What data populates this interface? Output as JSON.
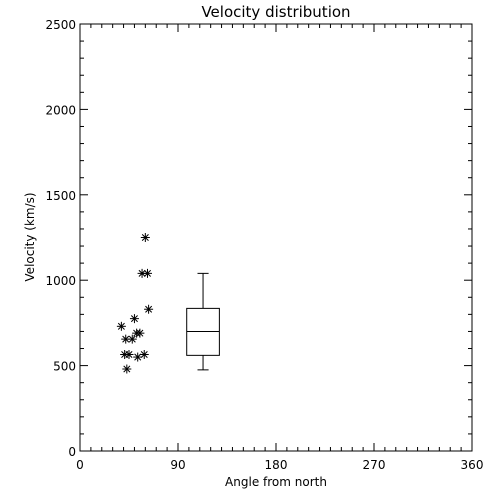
{
  "chart_data": {
    "type": "scatter",
    "title": "Velocity distribution",
    "xlabel": "Angle from north",
    "ylabel": "Velocity (km/s)",
    "xlim": [
      0,
      360
    ],
    "ylim": [
      0,
      2500
    ],
    "xticks": [
      "0",
      "90",
      "180",
      "270",
      "360"
    ],
    "yticks": [
      "0",
      "500",
      "1000",
      "1500",
      "2000",
      "2500"
    ],
    "points": [
      {
        "x": 38,
        "y": 730
      },
      {
        "x": 41,
        "y": 565
      },
      {
        "x": 42,
        "y": 655
      },
      {
        "x": 43,
        "y": 480
      },
      {
        "x": 45,
        "y": 565
      },
      {
        "x": 48,
        "y": 655
      },
      {
        "x": 50,
        "y": 775
      },
      {
        "x": 52,
        "y": 690
      },
      {
        "x": 53,
        "y": 550
      },
      {
        "x": 55,
        "y": 690
      },
      {
        "x": 57,
        "y": 1040
      },
      {
        "x": 59,
        "y": 565
      },
      {
        "x": 60,
        "y": 1250
      },
      {
        "x": 62,
        "y": 1040
      },
      {
        "x": 63,
        "y": 830
      }
    ],
    "boxplot": {
      "x_center": 113,
      "x_halfwidth": 15,
      "min": 475,
      "q1": 560,
      "median": 700,
      "q3": 835,
      "max": 1040
    },
    "grid": false
  }
}
